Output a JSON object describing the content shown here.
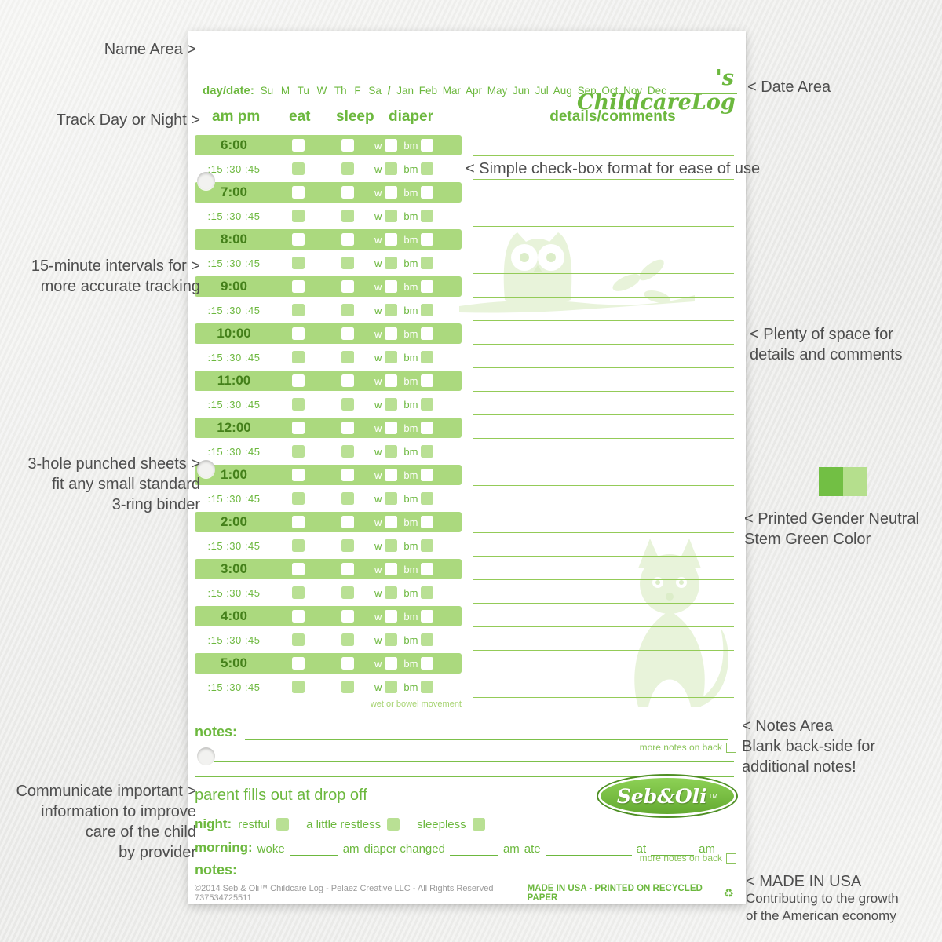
{
  "annotations": {
    "name_area": "Name Area >",
    "date_area": "< Date Area",
    "track_day_night": "Track Day or Night >",
    "simple_checkbox": "< Simple check-box format for ease of use",
    "intervals": [
      "15-minute intervals for >",
      "more accurate tracking"
    ],
    "space": [
      "< Plenty of space for",
      "details and comments"
    ],
    "hole_punched": [
      "3-hole punched sheets >",
      "fit any small standard",
      "3-ring binder"
    ],
    "green_color": [
      "< Printed Gender Neutral",
      "Stem Green Color"
    ],
    "notes_area": [
      "< Notes Area",
      "Blank back-side for",
      "additional notes!"
    ],
    "communicate": [
      "Communicate important >",
      "information to improve",
      "care of the child",
      "by provider"
    ],
    "made_in_usa": [
      "< MADE IN USA",
      "Contributing to the growth",
      "of the American economy"
    ]
  },
  "form": {
    "title_suffix": "'s ChildcareLog",
    "daydate_label": "day/date:",
    "days": "Su M Tu W Th F Sa",
    "separator": "/",
    "months": "Jan Feb Mar Apr May Jun Jul Aug Sep Oct Nov Dec",
    "columns": {
      "ampm": "am pm",
      "eat": "eat",
      "sleep": "sleep",
      "diaper": "diaper",
      "details": "details/comments"
    },
    "hours": [
      "6:00",
      "7:00",
      "8:00",
      "9:00",
      "10:00",
      "11:00",
      "12:00",
      "1:00",
      "2:00",
      "3:00",
      "4:00",
      "5:00"
    ],
    "intervals": ":15  :30  :45",
    "w_label": "w",
    "bm_label": "bm",
    "wet_note": "wet or bowel movement",
    "notes_label": "notes:",
    "more_notes_label": "more notes on back",
    "parent": {
      "title": "parent fills out at drop off",
      "night_label": "night:",
      "night_options": [
        "restful",
        "a little restless",
        "sleepless"
      ],
      "morning_label": "morning:",
      "woke_label": "woke",
      "am_label": "am",
      "diaper_changed_label": "diaper changed",
      "ate_label": "ate",
      "at_label": "at",
      "notes_label": "notes:",
      "more_notes_label": "more notes on back"
    },
    "logo_text": "Seb&Oli",
    "logo_tm": "TM",
    "footer_copyright": "©2014 Seb & Oli™ Childcare Log - Pelaez Creative LLC - All Rights Reserved 737534725511",
    "footer_made": "MADE IN USA - PRINTED ON RECYCLED PAPER",
    "recycle_icon": "♻"
  },
  "colors": {
    "green": "#6cb83e",
    "band_green": "#abd97e",
    "checkbox_green": "#b9e094",
    "line_green": "#94cb58",
    "swatch_dark": "#72bf44",
    "swatch_light": "#b5df8d",
    "annotation_gray": "#4e4e4e"
  }
}
